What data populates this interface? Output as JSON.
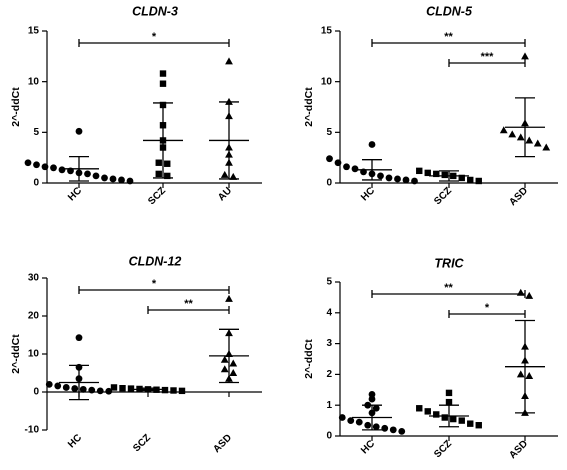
{
  "chart_data": [
    {
      "type": "scatter",
      "title": "CLDN-3",
      "ylabel": "2^-ddCt",
      "ylim": [
        0,
        15
      ],
      "yticks": [
        0,
        5,
        10,
        15
      ],
      "categories": [
        "HC",
        "SCZ",
        "AU"
      ],
      "series": [
        {
          "values": [
            5.1,
            2.0,
            1.8,
            1.6,
            1.5,
            1.3,
            1.2,
            1.0,
            0.9,
            0.7,
            0.5,
            0.4,
            0.3,
            0.2
          ],
          "mean": 1.4,
          "sd": 1.2
        },
        {
          "values": [
            10.8,
            9.8,
            7.7,
            5.7,
            4.2,
            3.5,
            2.0,
            1.9,
            0.9,
            0.7
          ],
          "mean": 4.2,
          "sd": 3.7
        },
        {
          "values": [
            12.0,
            8.0,
            6.6,
            3.5,
            2.8,
            2.0,
            0.8,
            0.6
          ],
          "mean": 4.2,
          "sd": 3.8
        }
      ],
      "comparisons": [
        {
          "from": "HC",
          "to": "AU",
          "label": "*"
        }
      ]
    },
    {
      "type": "scatter",
      "title": "CLDN-5",
      "ylabel": "2^-ddCt",
      "ylim": [
        0,
        15
      ],
      "yticks": [
        0,
        5,
        10,
        15
      ],
      "categories": [
        "HC",
        "SCZ",
        "ASD"
      ],
      "series": [
        {
          "values": [
            3.8,
            2.4,
            2.0,
            1.6,
            1.4,
            1.1,
            0.9,
            0.7,
            0.5,
            0.4,
            0.3,
            0.2
          ],
          "mean": 1.3,
          "sd": 1.0
        },
        {
          "values": [
            1.2,
            1.0,
            0.9,
            0.8,
            0.7,
            0.5,
            0.3,
            0.2
          ],
          "mean": 0.7,
          "sd": 0.5
        },
        {
          "values": [
            12.5,
            5.9,
            5.2,
            4.8,
            4.5,
            4.2,
            3.9,
            3.5
          ],
          "mean": 5.5,
          "sd": 2.9
        }
      ],
      "comparisons": [
        {
          "from": "HC",
          "to": "ASD",
          "label": "**"
        },
        {
          "from": "SCZ",
          "to": "ASD",
          "label": "***"
        }
      ]
    },
    {
      "type": "scatter",
      "title": "CLDN-12",
      "ylabel": "2^-ddCt",
      "ylim": [
        -10,
        30
      ],
      "yticks": [
        -10,
        0,
        10,
        20,
        30
      ],
      "categories": [
        "HC",
        "SCZ",
        "ASD"
      ],
      "series": [
        {
          "values": [
            14.3,
            6.5,
            3.5,
            2.0,
            1.6,
            1.2,
            0.9,
            0.7,
            0.5,
            0.3,
            0.2
          ],
          "mean": 2.5,
          "sd": 4.5
        },
        {
          "values": [
            1.2,
            1.0,
            0.9,
            0.8,
            0.7,
            0.6,
            0.5,
            0.4,
            0.3
          ],
          "mean": 0.7,
          "sd": 0.3
        },
        {
          "values": [
            24.5,
            15.5,
            10.0,
            8.5,
            7.5,
            6.0,
            5.0,
            3.5
          ],
          "mean": 9.5,
          "sd": 7.0
        }
      ],
      "comparisons": [
        {
          "from": "HC",
          "to": "ASD",
          "label": "*"
        },
        {
          "from": "SCZ",
          "to": "ASD",
          "label": "**"
        }
      ]
    },
    {
      "type": "scatter",
      "title": "TRIC",
      "ylabel": "2^-ddCt",
      "ylim": [
        0,
        5
      ],
      "yticks": [
        0,
        1,
        2,
        3,
        4,
        5
      ],
      "categories": [
        "HC",
        "SCZ",
        "ASD"
      ],
      "series": [
        {
          "values": [
            1.35,
            1.2,
            1.0,
            0.9,
            0.75,
            0.6,
            0.5,
            0.45,
            0.35,
            0.3,
            0.25,
            0.2,
            0.15
          ],
          "mean": 0.6,
          "sd": 0.4
        },
        {
          "values": [
            1.4,
            1.1,
            0.9,
            0.8,
            0.7,
            0.6,
            0.55,
            0.5,
            0.4,
            0.35
          ],
          "mean": 0.65,
          "sd": 0.35
        },
        {
          "values": [
            4.65,
            4.55,
            2.9,
            2.45,
            2.0,
            1.95,
            1.3,
            0.75
          ],
          "mean": 2.25,
          "sd": 1.5
        }
      ],
      "comparisons": [
        {
          "from": "HC",
          "to": "ASD",
          "label": "**"
        },
        {
          "from": "SCZ",
          "to": "ASD",
          "label": "*"
        }
      ]
    }
  ]
}
